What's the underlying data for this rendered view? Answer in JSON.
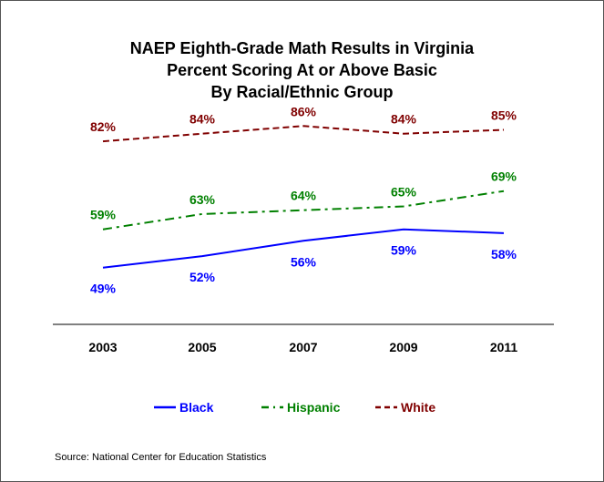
{
  "chart_data": {
    "type": "line",
    "title": [
      "NAEP Eighth-Grade Math Results in Virginia",
      "Percent Scoring At or Above Basic",
      "By Racial/Ethnic Group"
    ],
    "categories": [
      "2003",
      "2005",
      "2007",
      "2009",
      "2011"
    ],
    "series": [
      {
        "name": "Black",
        "values": [
          49,
          52,
          56,
          59,
          58
        ],
        "labels": [
          "49%",
          "52%",
          "56%",
          "59%",
          "58%"
        ],
        "color": "#0000ff",
        "dash": "solid",
        "label_position": "below"
      },
      {
        "name": "Hispanic",
        "values": [
          59,
          63,
          64,
          65,
          69
        ],
        "labels": [
          "59%",
          "63%",
          "64%",
          "65%",
          "69%"
        ],
        "color": "#008000",
        "dash": "dash-dot",
        "label_position": "above"
      },
      {
        "name": "White",
        "values": [
          82,
          84,
          86,
          84,
          85
        ],
        "labels": [
          "82%",
          "84%",
          "86%",
          "84%",
          "85%"
        ],
        "color": "#800000",
        "dash": "dashed",
        "label_position": "above"
      }
    ],
    "ylabel": "",
    "xlabel": "",
    "grid": false,
    "legend": "bottom",
    "source": "Source: National Center for Education Statistics"
  }
}
